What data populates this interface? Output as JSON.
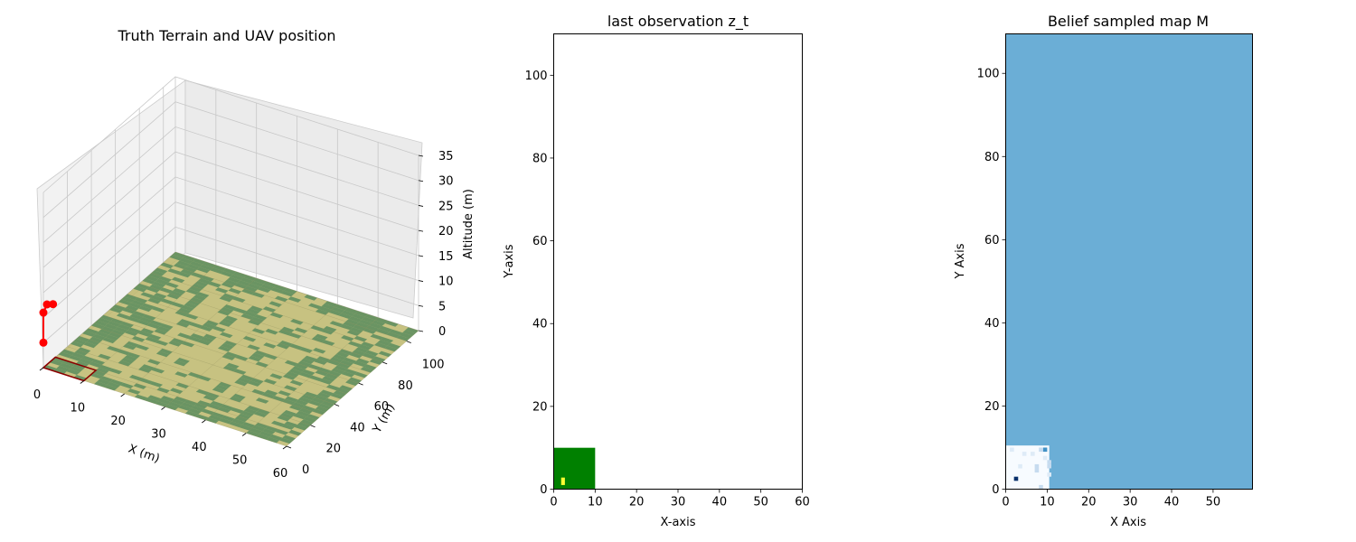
{
  "chart_data": [
    {
      "type": "3d-surface",
      "title": "Truth Terrain and UAV position",
      "xlabel": "X (m)",
      "ylabel": "Y (m)",
      "zlabel": "Altitude (m)",
      "xlim": [
        0,
        60
      ],
      "ylim": [
        0,
        110
      ],
      "zlim": [
        0,
        35
      ],
      "x_ticks": [
        0,
        10,
        20,
        30,
        40,
        50,
        60
      ],
      "y_ticks": [
        0,
        20,
        40,
        60,
        80,
        100
      ],
      "z_ticks": [
        0,
        5,
        10,
        15,
        20,
        25,
        30,
        35
      ],
      "terrain_colors": {
        "field": "#bdb76b",
        "forest": "#5f8f5f",
        "footprint": "#8b0000"
      },
      "uav_path": [
        {
          "x": 0,
          "y": 0,
          "z": 5
        },
        {
          "x": 0,
          "y": 0,
          "z": 11
        },
        {
          "x": 0,
          "y": 3,
          "z": 12
        },
        {
          "x": 0,
          "y": 8,
          "z": 11
        }
      ],
      "uav_color": "#ff0000",
      "footprint": {
        "x": [
          0,
          10
        ],
        "y": [
          0,
          10
        ]
      }
    },
    {
      "type": "heatmap",
      "title": "last observation z_t",
      "xlabel": "X-axis",
      "ylabel": "Y-axis",
      "xlim": [
        0,
        60
      ],
      "ylim": [
        0,
        110
      ],
      "x_ticks": [
        0,
        10,
        20,
        30,
        40,
        50,
        60
      ],
      "y_ticks": [
        0,
        20,
        40,
        60,
        80,
        100
      ],
      "cells": [
        {
          "x": [
            0,
            10
          ],
          "y": [
            0,
            10
          ],
          "color": "#008000"
        },
        {
          "x": [
            1.8,
            2.7
          ],
          "y": [
            1,
            2.8
          ],
          "color": "#ffff33"
        }
      ]
    },
    {
      "type": "heatmap",
      "title": "Belief sampled map M",
      "xlabel": "X Axis",
      "ylabel": "Y Axis",
      "xlim": [
        0,
        59.5
      ],
      "ylim": [
        0,
        109.5
      ],
      "x_ticks": [
        0,
        10,
        20,
        30,
        40,
        50
      ],
      "y_ticks": [
        0,
        20,
        40,
        60,
        80,
        100
      ],
      "background_color": "#6baed6",
      "observed_region": {
        "x": [
          0,
          10.5
        ],
        "y": [
          0,
          10.5
        ],
        "color": "#f7fbff"
      },
      "cells": [
        {
          "x": 2,
          "y": 2,
          "color": "#08306b"
        },
        {
          "x": 9,
          "y": 9,
          "color": "#4292c6"
        },
        {
          "x": 8,
          "y": 9,
          "color": "#c6dbef"
        },
        {
          "x": 7,
          "y": 5,
          "color": "#c6dbef"
        },
        {
          "x": 7,
          "y": 4,
          "color": "#c6dbef"
        },
        {
          "x": 3,
          "y": 5,
          "color": "#deebf7"
        },
        {
          "x": 4,
          "y": 8,
          "color": "#deebf7"
        },
        {
          "x": 10,
          "y": 5,
          "color": "#c6dbef"
        },
        {
          "x": 10,
          "y": 6,
          "color": "#c6dbef"
        },
        {
          "x": 10,
          "y": 3,
          "color": "#deebf7"
        },
        {
          "x": 8,
          "y": 0,
          "color": "#c6dbef"
        },
        {
          "x": 1,
          "y": 9,
          "color": "#deebf7"
        },
        {
          "x": 6,
          "y": 8,
          "color": "#deebf7"
        },
        {
          "x": 9,
          "y": 7,
          "color": "#deebf7"
        }
      ]
    }
  ]
}
